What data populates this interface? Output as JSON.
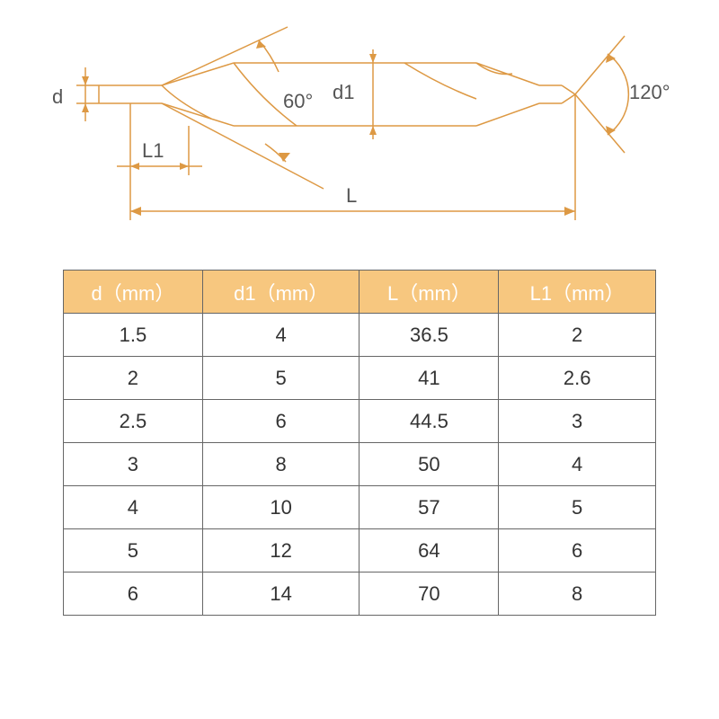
{
  "diagram": {
    "stroke": "#dd9944",
    "stroke_width": 1.5,
    "labels": {
      "d": "d",
      "d1": "d1",
      "L": "L",
      "L1": "L1",
      "angle60": "60°",
      "angle120": "120°"
    },
    "label_color": "#555555",
    "label_fontsize": 22
  },
  "table": {
    "header_bg": "#f7c77f",
    "header_color": "#ffffff",
    "border_color": "#666666",
    "cell_color": "#333333",
    "columns": [
      "d（mm）",
      "d1（mm）",
      "L（mm）",
      "L1（mm）"
    ],
    "rows": [
      [
        "1.5",
        "4",
        "36.5",
        "2"
      ],
      [
        "2",
        "5",
        "41",
        "2.6"
      ],
      [
        "2.5",
        "6",
        "44.5",
        "3"
      ],
      [
        "3",
        "8",
        "50",
        "4"
      ],
      [
        "4",
        "10",
        "57",
        "5"
      ],
      [
        "5",
        "12",
        "64",
        "6"
      ],
      [
        "6",
        "14",
        "70",
        "8"
      ]
    ]
  }
}
